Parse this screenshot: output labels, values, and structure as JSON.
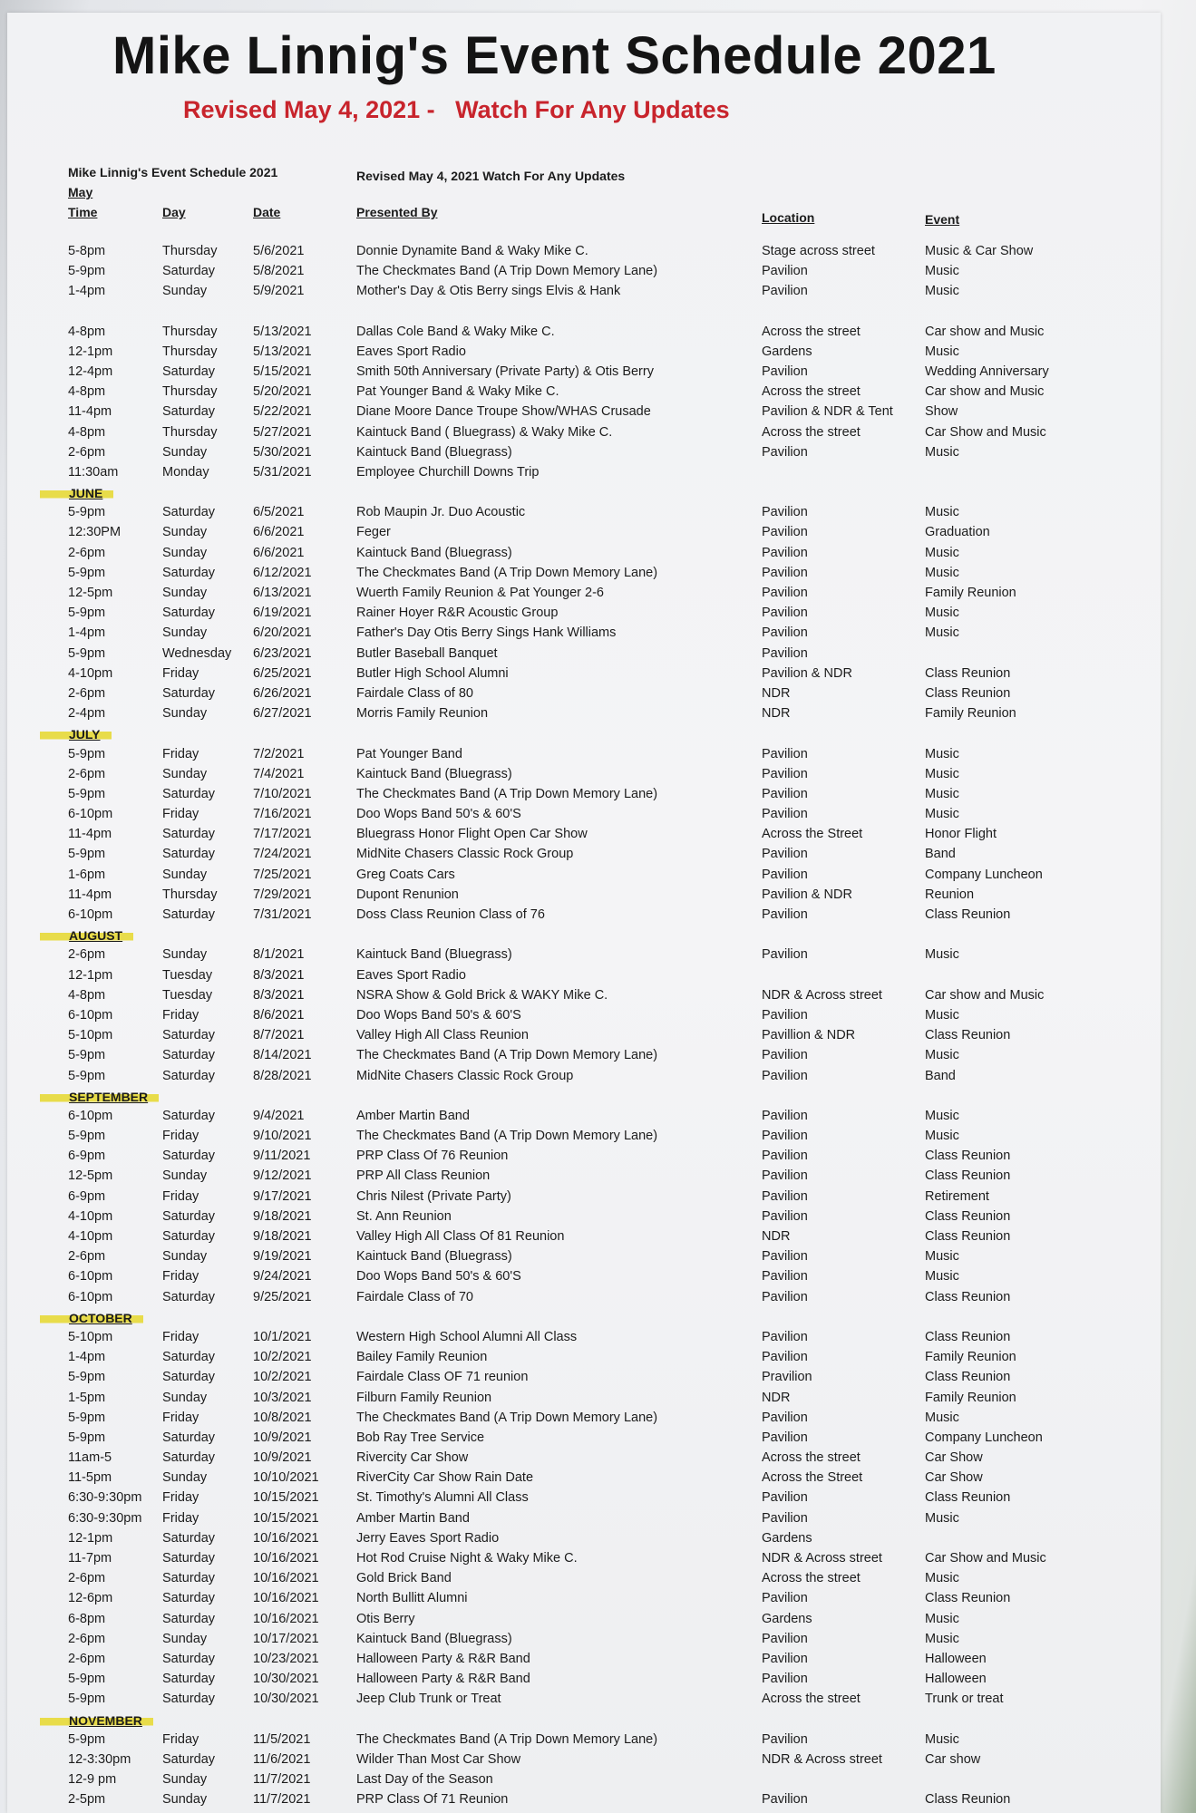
{
  "header": {
    "title": "Mike Linnig's Event Schedule 2021",
    "subtitle": "Revised May 4, 2021 -   Watch For Any Updates",
    "small_title": "Mike Linnig's Event Schedule 2021",
    "small_revised": "Revised May 4, 2021  Watch For Any Updates",
    "first_month": "May"
  },
  "columns": [
    "Time",
    "Day",
    "Date",
    "Presented By",
    "Location",
    "Event"
  ],
  "colors": {
    "title": "#141414",
    "subtitle": "#c8242c",
    "highlight": "#e8dc4a"
  },
  "sections": [
    {
      "month": "",
      "rows": [
        [
          "5-8pm",
          "Thursday",
          "5/6/2021",
          "Donnie Dynamite Band & Waky Mike C.",
          "Stage across street",
          "Music & Car Show"
        ],
        [
          "5-9pm",
          "Saturday",
          "5/8/2021",
          "The Checkmates Band (A Trip Down Memory Lane)",
          "Pavilion",
          "Music"
        ],
        [
          "1-4pm",
          "Sunday",
          "5/9/2021",
          "Mother's Day & Otis Berry sings Elvis & Hank",
          "Pavilion",
          "Music"
        ]
      ]
    },
    {
      "month": "",
      "gap": true,
      "rows": [
        [
          "4-8pm",
          "Thursday",
          "5/13/2021",
          "Dallas Cole Band & Waky Mike C.",
          "Across the street",
          "Car show and Music"
        ],
        [
          "12-1pm",
          "Thursday",
          "5/13/2021",
          "Eaves Sport Radio",
          "Gardens",
          "Music"
        ],
        [
          "12-4pm",
          "Saturday",
          "5/15/2021",
          "Smith 50th Anniversary (Private Party) & Otis Berry",
          "Pavilion",
          "Wedding Anniversary"
        ],
        [
          "4-8pm",
          "Thursday",
          "5/20/2021",
          "Pat Younger Band & Waky Mike C.",
          "Across the street",
          "Car show and Music"
        ],
        [
          "11-4pm",
          "Saturday",
          "5/22/2021",
          "Diane Moore Dance Troupe Show/WHAS Crusade",
          "Pavilion & NDR & Tent",
          "Show"
        ],
        [
          "4-8pm",
          "Thursday",
          "5/27/2021",
          "Kaintuck Band ( Bluegrass) & Waky Mike C.",
          "Across the street",
          "Car Show and  Music"
        ],
        [
          "2-6pm",
          "Sunday",
          "5/30/2021",
          "Kaintuck Band (Bluegrass)",
          "Pavilion",
          "Music"
        ],
        [
          "11:30am",
          "Monday",
          "5/31/2021",
          "Employee Churchill Downs Trip",
          "",
          ""
        ]
      ]
    },
    {
      "month": "JUNE",
      "rows": [
        [
          "5-9pm",
          "Saturday",
          "6/5/2021",
          "Rob Maupin Jr. Duo Acoustic",
          "Pavilion",
          "Music"
        ],
        [
          "12:30PM",
          "Sunday",
          "6/6/2021",
          "Feger",
          "Pavilion",
          "Graduation"
        ],
        [
          "2-6pm",
          "Sunday",
          "6/6/2021",
          "Kaintuck Band (Bluegrass)",
          "Pavilion",
          "Music"
        ],
        [
          "5-9pm",
          "Saturday",
          "6/12/2021",
          "The Checkmates Band (A Trip Down Memory Lane)",
          "Pavilion",
          "Music"
        ],
        [
          "12-5pm",
          "Sunday",
          "6/13/2021",
          "Wuerth Family Reunion & Pat Younger 2-6",
          "Pavilion",
          "Family Reunion"
        ],
        [
          "5-9pm",
          "Saturday",
          "6/19/2021",
          "Rainer Hoyer R&R Acoustic Group",
          "Pavilion",
          "Music"
        ],
        [
          "1-4pm",
          "Sunday",
          "6/20/2021",
          "Father's Day Otis  Berry Sings Hank Williams",
          "Pavilion",
          "Music"
        ],
        [
          "5-9pm",
          "Wednesday",
          "6/23/2021",
          "Butler Baseball Banquet",
          "Pavilion",
          ""
        ],
        [
          "4-10pm",
          "Friday",
          "6/25/2021",
          "Butler High School Alumni",
          "Pavilion & NDR",
          "Class Reunion"
        ],
        [
          "2-6pm",
          "Saturday",
          "6/26/2021",
          "Fairdale Class of 80",
          "NDR",
          "Class Reunion"
        ],
        [
          "2-4pm",
          "Sunday",
          "6/27/2021",
          "Morris Family Reunion",
          "NDR",
          "Family Reunion"
        ]
      ]
    },
    {
      "month": "JULY",
      "rows": [
        [
          "5-9pm",
          "Friday",
          "7/2/2021",
          "Pat Younger Band",
          "Pavilion",
          "Music"
        ],
        [
          "2-6pm",
          "Sunday",
          "7/4/2021",
          "Kaintuck Band (Bluegrass)",
          "Pavilion",
          "Music"
        ],
        [
          "5-9pm",
          "Saturday",
          "7/10/2021",
          "The Checkmates Band (A Trip Down Memory Lane)",
          "Pavilion",
          "Music"
        ],
        [
          "6-10pm",
          "Friday",
          "7/16/2021",
          "Doo Wops Band 50's & 60'S",
          "Pavilion",
          "Music"
        ],
        [
          "11-4pm",
          "Saturday",
          "7/17/2021",
          "Bluegrass Honor Flight Open Car Show",
          "Across the Street",
          "Honor Flight"
        ],
        [
          "5-9pm",
          "Saturday",
          "7/24/2021",
          "MidNite Chasers Classic Rock Group",
          "Pavilion",
          "Band"
        ],
        [
          "1-6pm",
          "Sunday",
          "7/25/2021",
          "Greg Coats Cars",
          "Pavilion",
          "Company Luncheon"
        ],
        [
          "11-4pm",
          "Thursday",
          "7/29/2021",
          "Dupont Renunion",
          "Pavilion & NDR",
          "Reunion"
        ],
        [
          "6-10pm",
          "Saturday",
          "7/31/2021",
          "Doss Class Reunion Class of 76",
          "Pavilion",
          "Class Reunion"
        ]
      ]
    },
    {
      "month": "AUGUST",
      "rows": [
        [
          "2-6pm",
          "Sunday",
          "8/1/2021",
          "Kaintuck Band (Bluegrass)",
          "Pavilion",
          "Music"
        ],
        [
          "12-1pm",
          "Tuesday",
          "8/3/2021",
          "Eaves Sport Radio",
          "",
          ""
        ],
        [
          "4-8pm",
          "Tuesday",
          "8/3/2021",
          "NSRA Show & Gold Brick & WAKY  Mike C.",
          "NDR & Across street",
          "Car show and Music"
        ],
        [
          "6-10pm",
          "Friday",
          "8/6/2021",
          "Doo Wops Band 50's & 60'S",
          "Pavilion",
          "Music"
        ],
        [
          "5-10pm",
          "Saturday",
          "8/7/2021",
          "Valley High All Class Reunion",
          "Pavillion & NDR",
          "Class Reunion"
        ],
        [
          "5-9pm",
          "Saturday",
          "8/14/2021",
          "The Checkmates Band (A Trip Down Memory Lane)",
          "Pavilion",
          "Music"
        ],
        [
          "5-9pm",
          "Saturday",
          "8/28/2021",
          "MidNite Chasers Classic Rock Group",
          "Pavilion",
          "Band"
        ]
      ]
    },
    {
      "month": "SEPTEMBER",
      "rows": [
        [
          "6-10pm",
          "Saturday",
          "9/4/2021",
          "Amber Martin Band",
          "Pavilion",
          "Music"
        ],
        [
          "5-9pm",
          "Friday",
          "9/10/2021",
          "The Checkmates Band (A Trip Down Memory Lane)",
          "Pavilion",
          "Music"
        ],
        [
          "6-9pm",
          "Saturday",
          "9/11/2021",
          "PRP Class Of  76  Reunion",
          "Pavilion",
          "Class Reunion"
        ],
        [
          "12-5pm",
          "Sunday",
          "9/12/2021",
          "PRP All Class Reunion",
          "Pavilion",
          "Class Reunion"
        ],
        [
          "6-9pm",
          "Friday",
          "9/17/2021",
          "Chris Nilest (Private Party)",
          "Pavilion",
          "Retirement"
        ],
        [
          "4-10pm",
          "Saturday",
          "9/18/2021",
          "St. Ann Reunion",
          "Pavilion",
          "Class Reunion"
        ],
        [
          "4-10pm",
          "Saturday",
          "9/18/2021",
          "Valley High All Class Of 81 Reunion",
          "NDR",
          "Class Reunion"
        ],
        [
          "2-6pm",
          "Sunday",
          "9/19/2021",
          "Kaintuck Band (Bluegrass)",
          "Pavilion",
          "Music"
        ],
        [
          "6-10pm",
          "Friday",
          "9/24/2021",
          "Doo Wops Band 50's & 60'S",
          "Pavilion",
          "Music"
        ],
        [
          "6-10pm",
          "Saturday",
          "9/25/2021",
          "Fairdale  Class of 70",
          "Pavilion",
          "Class Reunion"
        ]
      ]
    },
    {
      "month": "OCTOBER",
      "rows": [
        [
          "5-10pm",
          "Friday",
          "10/1/2021",
          "Western High School Alumni All Class",
          "Pavilion",
          "Class Reunion"
        ],
        [
          "1-4pm",
          "Saturday",
          "10/2/2021",
          "Bailey Family Reunion",
          "Pavilion",
          "Family Reunion"
        ],
        [
          "5-9pm",
          "Saturday",
          "10/2/2021",
          "Fairdale Class OF 71 reunion",
          "Pravilion",
          "Class Reunion"
        ],
        [
          "1-5pm",
          "Sunday",
          "10/3/2021",
          "Filburn Family Reunion",
          "NDR",
          "Family Reunion"
        ],
        [
          "5-9pm",
          "Friday",
          "10/8/2021",
          "The Checkmates Band (A Trip Down Memory Lane)",
          "Pavilion",
          "Music"
        ],
        [
          "5-9pm",
          "Saturday",
          "10/9/2021",
          "Bob Ray Tree Service",
          "Pavilion",
          "Company Luncheon"
        ],
        [
          "11am-5",
          "Saturday",
          "10/9/2021",
          "Rivercity Car Show",
          "Across the street",
          "Car Show"
        ],
        [
          "11-5pm",
          "Sunday",
          "10/10/2021",
          "RiverCity Car Show Rain Date",
          "Across the Street",
          "Car Show"
        ],
        [
          "6:30-9:30pm",
          "Friday",
          "10/15/2021",
          "St. Timothy's Alumni All Class",
          "Pavilion",
          "Class Reunion"
        ],
        [
          "6:30-9:30pm",
          "Friday",
          "10/15/2021",
          "Amber Martin Band",
          "Pavilion",
          "Music"
        ],
        [
          "12-1pm",
          "Saturday",
          "10/16/2021",
          "Jerry Eaves Sport Radio",
          "Gardens",
          ""
        ],
        [
          "11-7pm",
          "Saturday",
          "10/16/2021",
          "Hot Rod Cruise Night & Waky Mike C.",
          "NDR & Across  street",
          "Car Show and Music"
        ],
        [
          "2-6pm",
          "Saturday",
          "10/16/2021",
          "Gold Brick Band",
          "Across the street",
          "Music"
        ],
        [
          "12-6pm",
          "Saturday",
          "10/16/2021",
          "North Bullitt Alumni",
          "Pavilion",
          "Class Reunion"
        ],
        [
          "6-8pm",
          "Saturday",
          "10/16/2021",
          "Otis  Berry",
          "Gardens",
          "Music"
        ],
        [
          "2-6pm",
          "Sunday",
          "10/17/2021",
          "Kaintuck Band (Bluegrass)",
          "Pavilion",
          "Music"
        ],
        [
          "2-6pm",
          "Saturday",
          "10/23/2021",
          "Halloween Party & R&R Band",
          "Pavilion",
          "Halloween"
        ],
        [
          "5-9pm",
          "Saturday",
          "10/30/2021",
          "Halloween Party & R&R Band",
          "Pavilion",
          "Halloween"
        ],
        [
          "5-9pm",
          "Saturday",
          "10/30/2021",
          "Jeep Club Trunk or Treat",
          "Across the street",
          "Trunk or treat"
        ]
      ]
    },
    {
      "month": "NOVEMBER",
      "rows": [
        [
          "5-9pm",
          "Friday",
          "11/5/2021",
          "The Checkmates Band (A Trip Down Memory Lane)",
          "Pavilion",
          "Music"
        ],
        [
          "12-3:30pm",
          "Saturday",
          "11/6/2021",
          "Wilder Than Most Car Show",
          "NDR & Across street",
          "Car show"
        ],
        [
          "12-9 pm",
          "Sunday",
          "11/7/2021",
          "Last Day of the Season",
          "",
          ""
        ],
        [
          "2-5pm",
          "Sunday",
          "11/7/2021",
          "PRP Class Of 71 Reunion",
          "Pavilion",
          "Class Reunion"
        ]
      ]
    }
  ]
}
